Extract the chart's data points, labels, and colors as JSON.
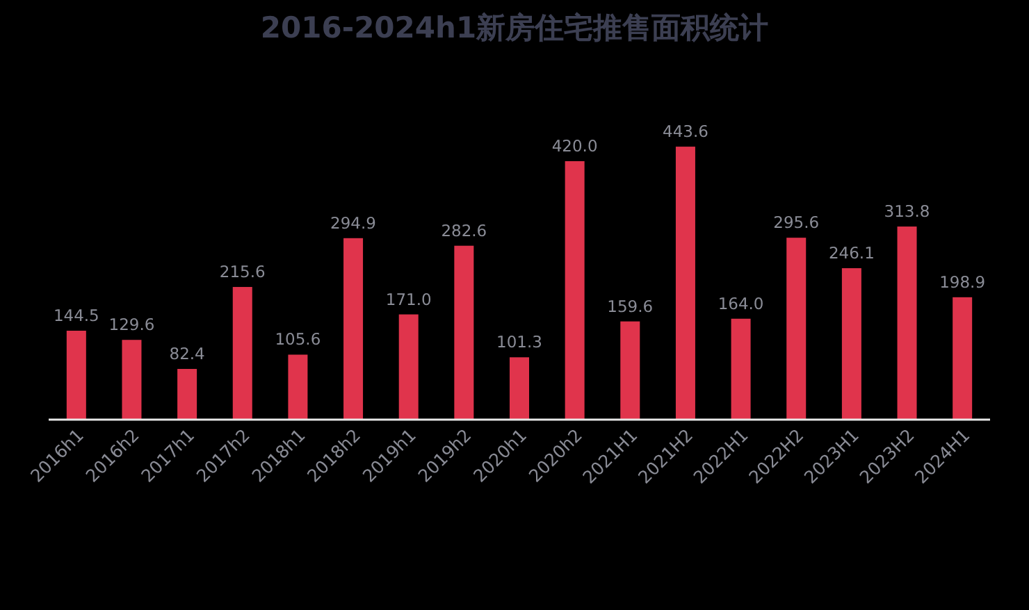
{
  "chart_data": {
    "type": "bar",
    "title": "2016-2024h1新房住宅推售面积统计",
    "categories": [
      "2016h1",
      "2016h2",
      "2017h1",
      "2017h2",
      "2018h1",
      "2018h2",
      "2019h1",
      "2019h2",
      "2020h1",
      "2020h2",
      "2021H1",
      "2021H2",
      "2022H1",
      "2022H2",
      "2023H1",
      "2023H2",
      "2024H1"
    ],
    "values": [
      144.5,
      129.6,
      82.4,
      215.6,
      105.6,
      294.9,
      171.0,
      282.6,
      101.3,
      420.0,
      159.6,
      443.6,
      164.0,
      295.6,
      246.1,
      313.8,
      198.9
    ],
    "value_labels": [
      "144.5",
      "129.6",
      "82.4",
      "215.6",
      "105.6",
      "294.9",
      "171.0",
      "282.6",
      "101.3",
      "420.0",
      "159.6",
      "443.6",
      "164.0",
      "295.6",
      "246.1",
      "313.8",
      "198.9"
    ],
    "color": "#e0344c"
  }
}
